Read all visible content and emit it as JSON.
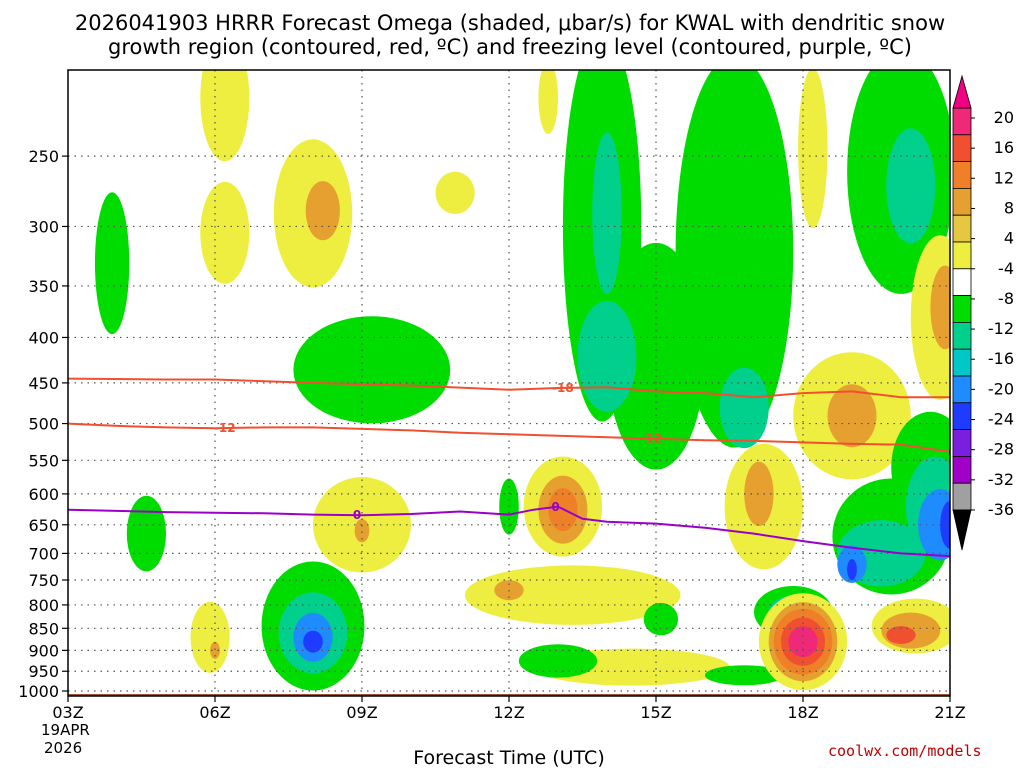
{
  "chart_data": {
    "type": "contour",
    "title_line1": "2026041903 HRRR Forecast Omega (shaded, μbar/s) for KWAL with dendritic snow",
    "title_line2": "growth region (contoured, red, ºC) and freezing level (contoured, purple, ºC)",
    "xlabel": "Forecast Time (UTC)",
    "x_range": [
      3,
      21
    ],
    "x_ticks": [
      {
        "hour": 3,
        "label": "03Z"
      },
      {
        "hour": 6,
        "label": "06Z"
      },
      {
        "hour": 9,
        "label": "09Z"
      },
      {
        "hour": 12,
        "label": "12Z"
      },
      {
        "hour": 15,
        "label": "15Z"
      },
      {
        "hour": 18,
        "label": "18Z"
      },
      {
        "hour": 21,
        "label": "21Z"
      }
    ],
    "date_label_1": "19APR",
    "date_label_2": "2026",
    "y_range_hpa": [
      1013,
      200
    ],
    "y_ticks": [
      250,
      300,
      350,
      400,
      450,
      500,
      550,
      600,
      650,
      700,
      750,
      800,
      850,
      900,
      950,
      1000
    ],
    "colorbar": {
      "colors": [
        "#000000",
        "#a0a0a0",
        "#a000c8",
        "#7a1fe0",
        "#1e3cff",
        "#1e8cff",
        "#00c8c8",
        "#00d08c",
        "#00dc00",
        "#ffffff",
        "#eeee40",
        "#e6c840",
        "#e6a030",
        "#f08028",
        "#f05030",
        "#f02878",
        "#f00082"
      ],
      "labels": [
        "-36",
        "-32",
        "-28",
        "-24",
        "-20",
        "-16",
        "-12",
        "-8",
        "-4",
        "4",
        "8",
        "12",
        "16",
        "20"
      ]
    },
    "omega_regions": [
      {
        "color": "#eeee40",
        "hour": 6.2,
        "hpa": 215,
        "rx": 0.5,
        "ry": 35
      },
      {
        "color": "#eeee40",
        "hour": 6.2,
        "hpa": 305,
        "rx": 0.5,
        "ry": 40
      },
      {
        "color": "#eeee40",
        "hour": 8.0,
        "hpa": 290,
        "rx": 0.8,
        "ry": 55
      },
      {
        "color": "#e6a030",
        "hour": 8.2,
        "hpa": 288,
        "rx": 0.35,
        "ry": 22
      },
      {
        "color": "#eeee40",
        "hour": 10.9,
        "hpa": 275,
        "rx": 0.4,
        "ry": 15
      },
      {
        "color": "#eeee40",
        "hour": 12.8,
        "hpa": 215,
        "rx": 0.2,
        "ry": 20
      },
      {
        "color": "#eeee40",
        "hour": 18.2,
        "hpa": 245,
        "rx": 0.3,
        "ry": 50
      },
      {
        "color": "#00dc00",
        "hour": 3.9,
        "hpa": 330,
        "rx": 0.35,
        "ry": 60
      },
      {
        "color": "#00dc00",
        "hour": 9.2,
        "hpa": 435,
        "rx": 1.6,
        "ry": 60
      },
      {
        "color": "#00dc00",
        "hour": 13.9,
        "hpa": 300,
        "rx": 0.8,
        "ry": 140
      },
      {
        "color": "#00dc00",
        "hour": 15.0,
        "hpa": 420,
        "rx": 1.0,
        "ry": 120
      },
      {
        "color": "#00dc00",
        "hour": 16.6,
        "hpa": 320,
        "rx": 1.2,
        "ry": 150
      },
      {
        "color": "#00dc00",
        "hour": 20.0,
        "hpa": 260,
        "rx": 1.1,
        "ry": 80
      },
      {
        "color": "#00d08c",
        "hour": 14.0,
        "hpa": 290,
        "rx": 0.3,
        "ry": 60
      },
      {
        "color": "#00d08c",
        "hour": 14.0,
        "hpa": 420,
        "rx": 0.6,
        "ry": 60
      },
      {
        "color": "#00d08c",
        "hour": 16.8,
        "hpa": 480,
        "rx": 0.5,
        "ry": 50
      },
      {
        "color": "#00d08c",
        "hour": 20.2,
        "hpa": 270,
        "rx": 0.5,
        "ry": 40
      },
      {
        "color": "#eeee40",
        "hour": 20.8,
        "hpa": 380,
        "rx": 0.6,
        "ry": 80
      },
      {
        "color": "#e6a030",
        "hour": 20.9,
        "hpa": 370,
        "rx": 0.3,
        "ry": 40
      },
      {
        "color": "#eeee40",
        "hour": 19.0,
        "hpa": 490,
        "rx": 1.2,
        "ry": 80
      },
      {
        "color": "#e6a030",
        "hour": 19.0,
        "hpa": 490,
        "rx": 0.5,
        "ry": 40
      },
      {
        "color": "#eeee40",
        "hour": 17.2,
        "hpa": 620,
        "rx": 0.8,
        "ry": 100
      },
      {
        "color": "#e6a030",
        "hour": 17.1,
        "hpa": 600,
        "rx": 0.3,
        "ry": 50
      },
      {
        "color": "#eeee40",
        "hour": 9.0,
        "hpa": 650,
        "rx": 1.0,
        "ry": 80
      },
      {
        "color": "#e6a030",
        "hour": 9.0,
        "hpa": 660,
        "rx": 0.15,
        "ry": 20
      },
      {
        "color": "#eeee40",
        "hour": 13.1,
        "hpa": 620,
        "rx": 0.8,
        "ry": 80
      },
      {
        "color": "#e6a030",
        "hour": 13.1,
        "hpa": 625,
        "rx": 0.5,
        "ry": 55
      },
      {
        "color": "#f08028",
        "hour": 13.1,
        "hpa": 625,
        "rx": 0.3,
        "ry": 35
      },
      {
        "color": "#00dc00",
        "hour": 12.0,
        "hpa": 620,
        "rx": 0.2,
        "ry": 45
      },
      {
        "color": "#00dc00",
        "hour": 4.6,
        "hpa": 665,
        "rx": 0.4,
        "ry": 65
      },
      {
        "color": "#eeee40",
        "hour": 5.9,
        "hpa": 870,
        "rx": 0.4,
        "ry": 80
      },
      {
        "color": "#e6a030",
        "hour": 6.0,
        "hpa": 900,
        "rx": 0.1,
        "ry": 20
      },
      {
        "color": "#00dc00",
        "hour": 8.0,
        "hpa": 845,
        "rx": 1.05,
        "ry": 140
      },
      {
        "color": "#00d08c",
        "hour": 8.0,
        "hpa": 860,
        "rx": 0.7,
        "ry": 90
      },
      {
        "color": "#1e8cff",
        "hour": 8.0,
        "hpa": 870,
        "rx": 0.4,
        "ry": 55
      },
      {
        "color": "#1e3cff",
        "hour": 8.0,
        "hpa": 880,
        "rx": 0.2,
        "ry": 25
      },
      {
        "color": "#eeee40",
        "hour": 13.3,
        "hpa": 780,
        "rx": 2.2,
        "ry": 60
      },
      {
        "color": "#e6a030",
        "hour": 12.0,
        "hpa": 770,
        "rx": 0.3,
        "ry": 20
      },
      {
        "color": "#eeee40",
        "hour": 14.5,
        "hpa": 940,
        "rx": 2.0,
        "ry": 45
      },
      {
        "color": "#00dc00",
        "hour": 13.0,
        "hpa": 925,
        "rx": 0.8,
        "ry": 40
      },
      {
        "color": "#00dc00",
        "hour": 15.1,
        "hpa": 830,
        "rx": 0.35,
        "ry": 35
      },
      {
        "color": "#00dc00",
        "hour": 16.8,
        "hpa": 960,
        "rx": 0.8,
        "ry": 25
      },
      {
        "color": "#00dc00",
        "hour": 17.8,
        "hpa": 815,
        "rx": 0.8,
        "ry": 55
      },
      {
        "color": "#00d08c",
        "hour": 17.8,
        "hpa": 815,
        "rx": 0.5,
        "ry": 35
      },
      {
        "color": "#eeee40",
        "hour": 18.0,
        "hpa": 880,
        "rx": 0.9,
        "ry": 110
      },
      {
        "color": "#e6a030",
        "hour": 18.0,
        "hpa": 880,
        "rx": 0.7,
        "ry": 90
      },
      {
        "color": "#f08028",
        "hour": 18.0,
        "hpa": 880,
        "rx": 0.6,
        "ry": 75
      },
      {
        "color": "#f05030",
        "hour": 18.0,
        "hpa": 880,
        "rx": 0.45,
        "ry": 55
      },
      {
        "color": "#f02878",
        "hour": 18.0,
        "hpa": 880,
        "rx": 0.3,
        "ry": 35
      },
      {
        "color": "#00dc00",
        "hour": 19.8,
        "hpa": 670,
        "rx": 1.2,
        "ry": 100
      },
      {
        "color": "#00d08c",
        "hour": 19.6,
        "hpa": 700,
        "rx": 0.9,
        "ry": 60
      },
      {
        "color": "#00dc00",
        "hour": 20.6,
        "hpa": 560,
        "rx": 0.8,
        "ry": 80
      },
      {
        "color": "#00d08c",
        "hour": 20.7,
        "hpa": 620,
        "rx": 0.6,
        "ry": 80
      },
      {
        "color": "#1e8cff",
        "hour": 20.8,
        "hpa": 650,
        "rx": 0.45,
        "ry": 60
      },
      {
        "color": "#1e3cff",
        "hour": 21.0,
        "hpa": 650,
        "rx": 0.2,
        "ry": 40
      },
      {
        "color": "#1e8cff",
        "hour": 19.0,
        "hpa": 720,
        "rx": 0.3,
        "ry": 35
      },
      {
        "color": "#1e3cff",
        "hour": 19.0,
        "hpa": 730,
        "rx": 0.1,
        "ry": 20
      },
      {
        "color": "#eeee40",
        "hour": 20.3,
        "hpa": 845,
        "rx": 0.9,
        "ry": 60
      },
      {
        "color": "#e6a030",
        "hour": 20.2,
        "hpa": 855,
        "rx": 0.6,
        "ry": 40
      },
      {
        "color": "#f05030",
        "hour": 20.0,
        "hpa": 865,
        "rx": 0.3,
        "ry": 20
      }
    ],
    "contours": [
      {
        "name": "minus-18-isotherm",
        "color": "#f05030",
        "label": "-18",
        "label_hour": 13.1,
        "x": [
          3,
          5,
          6,
          8,
          10,
          12,
          13,
          14,
          15,
          16,
          17,
          18,
          19,
          20,
          21
        ],
        "y": [
          445,
          446,
          446,
          450,
          453,
          458,
          456,
          455,
          460,
          462,
          467,
          462,
          460,
          467,
          467
        ]
      },
      {
        "name": "minus-12-isotherm",
        "color": "#f05030",
        "label": "-12",
        "label_hour": 6.2,
        "label_hour_2": 14.9,
        "x": [
          3,
          4,
          5,
          6,
          7,
          8,
          9,
          10,
          11,
          12,
          13,
          14,
          15,
          16,
          17,
          18,
          19,
          20,
          21
        ],
        "y": [
          500,
          503,
          505,
          506,
          505,
          505,
          507,
          509,
          512,
          514,
          516,
          518,
          520,
          522,
          523,
          525,
          527,
          528,
          538
        ]
      },
      {
        "name": "zero-isotherm",
        "color": "#9a00c8",
        "label": "0",
        "label_hour": 8.9,
        "label_hour_2": 12.95,
        "x": [
          3,
          4,
          5,
          6,
          7,
          8,
          9,
          10,
          11,
          12,
          12.5,
          13,
          13.5,
          14,
          15,
          16,
          17,
          18,
          19,
          20,
          21
        ],
        "y": [
          625,
          627,
          629,
          630,
          631,
          633,
          634,
          632,
          628,
          633,
          625,
          620,
          640,
          645,
          648,
          655,
          665,
          678,
          690,
          700,
          705
        ]
      }
    ],
    "ground_band_color": "#a0522d",
    "credit": "coolwx.com/models"
  }
}
